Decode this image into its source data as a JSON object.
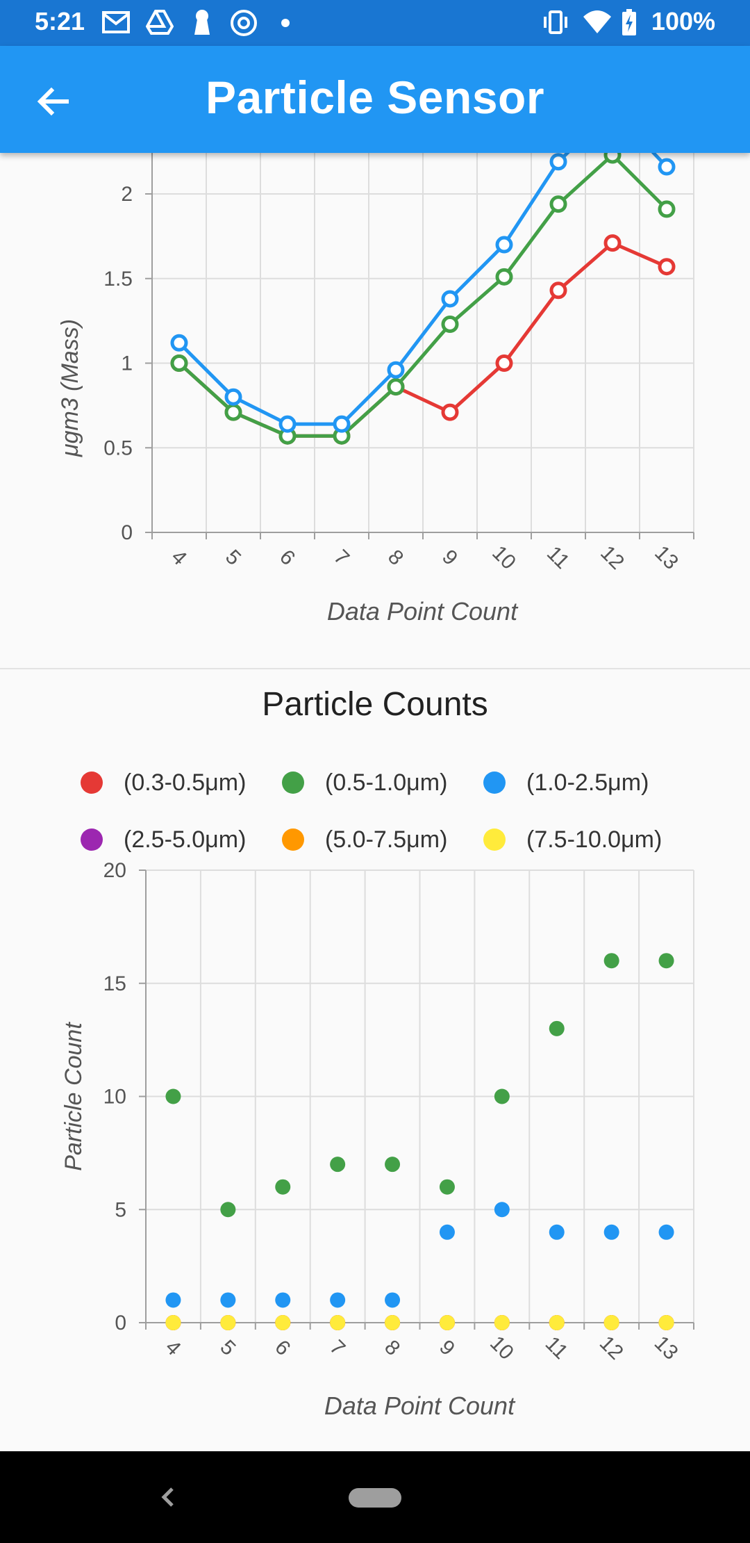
{
  "status_bar": {
    "time": "5:21",
    "battery": "100%",
    "icons": [
      "gmail-icon",
      "drive-icon",
      "keyhole-icon",
      "at-sign-icon",
      "dot-icon",
      "vibrate-icon",
      "wifi-icon",
      "battery-charging-icon"
    ]
  },
  "app_bar": {
    "title": "Particle Sensor",
    "back_icon": "arrow-back-icon",
    "color": "#2196f3"
  },
  "colors": {
    "red": "#e53935",
    "green": "#43a047",
    "blue": "#2196f3",
    "purple": "#9c27b0",
    "orange": "#ff9800",
    "yellow": "#ffeb3b"
  },
  "chart_data": [
    {
      "type": "line",
      "title": "",
      "xlabel": "Data Point Count",
      "ylabel": "μgm3 (Mass)",
      "x": [
        4,
        5,
        6,
        7,
        8,
        9,
        10,
        11,
        12,
        13
      ],
      "ylim": [
        0,
        2
      ],
      "yticks": [
        "0",
        "0.5",
        "1",
        "1.5",
        "2"
      ],
      "xticks": [
        "4",
        "5",
        "6",
        "7",
        "8",
        "9",
        "10",
        "11",
        "12",
        "13"
      ],
      "grid": true,
      "note": "chart scrolled; top portion clipped under the app bar",
      "series": [
        {
          "color": "#e53935",
          "values": [
            1.0,
            0.71,
            0.57,
            0.57,
            0.86,
            0.71,
            1.0,
            1.43,
            1.71,
            1.57
          ]
        },
        {
          "color": "#43a047",
          "values": [
            1.0,
            0.71,
            0.57,
            0.57,
            0.86,
            1.23,
            1.51,
            1.94,
            2.23,
            1.91
          ]
        },
        {
          "color": "#2196f3",
          "values": [
            1.12,
            0.8,
            0.64,
            0.64,
            0.96,
            1.38,
            1.7,
            2.19,
            2.5,
            2.16
          ]
        }
      ]
    },
    {
      "type": "scatter",
      "title": "Particle Counts",
      "xlabel": "Data Point Count",
      "ylabel": "Particle Count",
      "x": [
        4,
        5,
        6,
        7,
        8,
        9,
        10,
        11,
        12,
        13
      ],
      "ylim": [
        0,
        20
      ],
      "yticks": [
        "0",
        "5",
        "10",
        "15",
        "20"
      ],
      "xticks": [
        "4",
        "5",
        "6",
        "7",
        "8",
        "9",
        "10",
        "11",
        "12",
        "13"
      ],
      "grid": true,
      "legend_position": "top",
      "series": [
        {
          "name": "(0.3-0.5μm)",
          "color": "#e53935",
          "values": [
            0,
            0,
            0,
            0,
            0,
            0,
            0,
            0,
            0,
            0
          ]
        },
        {
          "name": "(0.5-1.0μm)",
          "color": "#43a047",
          "values": [
            10,
            5,
            6,
            7,
            7,
            6,
            10,
            13,
            16,
            16
          ]
        },
        {
          "name": "(1.0-2.5μm)",
          "color": "#2196f3",
          "values": [
            1,
            1,
            1,
            1,
            1,
            4,
            5,
            4,
            4,
            4
          ]
        },
        {
          "name": "(2.5-5.0μm)",
          "color": "#9c27b0",
          "values": [
            0,
            0,
            0,
            0,
            0,
            0,
            0,
            0,
            0,
            0
          ]
        },
        {
          "name": "(5.0-7.5μm)",
          "color": "#ff9800",
          "values": [
            0,
            0,
            0,
            0,
            0,
            0,
            0,
            0,
            0,
            0
          ]
        },
        {
          "name": "(7.5-10.0μm)",
          "color": "#ffeb3b",
          "values": [
            0,
            0,
            0,
            0,
            0,
            0,
            0,
            0,
            0,
            0
          ]
        }
      ]
    }
  ],
  "nav_bar": {
    "back_icon": "nav-back-icon",
    "home_icon": "home-pill-icon"
  }
}
